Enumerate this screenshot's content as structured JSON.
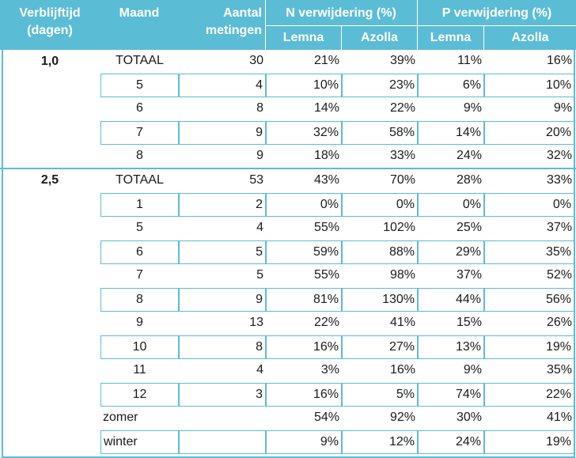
{
  "header": {
    "verblijftijd": [
      "Verblijftijd",
      "(dagen)"
    ],
    "maand": "Maand",
    "aantal": [
      "Aantal",
      "metingen"
    ],
    "n_group": "N verwijdering (%)",
    "p_group": "P verwijdering (%)",
    "sub": [
      "Lemna",
      "Azolla",
      "Lemna",
      "Azolla"
    ]
  },
  "groups": [
    {
      "verblijftijd": "1,0",
      "rows": [
        {
          "maand": "TOTAAL",
          "aantal": "30",
          "n_lemna": "21%",
          "n_azolla": "39%",
          "p_lemna": "11%",
          "p_azolla": "16%"
        },
        {
          "maand": "5",
          "aantal": "4",
          "n_lemna": "10%",
          "n_azolla": "23%",
          "p_lemna": "6%",
          "p_azolla": "10%"
        },
        {
          "maand": "6",
          "aantal": "8",
          "n_lemna": "14%",
          "n_azolla": "22%",
          "p_lemna": "9%",
          "p_azolla": "9%"
        },
        {
          "maand": "7",
          "aantal": "9",
          "n_lemna": "32%",
          "n_azolla": "58%",
          "p_lemna": "14%",
          "p_azolla": "20%"
        },
        {
          "maand": "8",
          "aantal": "9",
          "n_lemna": "18%",
          "n_azolla": "33%",
          "p_lemna": "24%",
          "p_azolla": "32%"
        }
      ]
    },
    {
      "verblijftijd": "2,5",
      "rows": [
        {
          "maand": "TOTAAL",
          "aantal": "53",
          "n_lemna": "43%",
          "n_azolla": "70%",
          "p_lemna": "28%",
          "p_azolla": "33%"
        },
        {
          "maand": "1",
          "aantal": "2",
          "n_lemna": "0%",
          "n_azolla": "0%",
          "p_lemna": "0%",
          "p_azolla": "0%"
        },
        {
          "maand": "5",
          "aantal": "4",
          "n_lemna": "55%",
          "n_azolla": "102%",
          "p_lemna": "25%",
          "p_azolla": "37%"
        },
        {
          "maand": "6",
          "aantal": "5",
          "n_lemna": "59%",
          "n_azolla": "88%",
          "p_lemna": "29%",
          "p_azolla": "35%"
        },
        {
          "maand": "7",
          "aantal": "5",
          "n_lemna": "55%",
          "n_azolla": "98%",
          "p_lemna": "37%",
          "p_azolla": "52%"
        },
        {
          "maand": "8",
          "aantal": "9",
          "n_lemna": "81%",
          "n_azolla": "130%",
          "p_lemna": "44%",
          "p_azolla": "56%"
        },
        {
          "maand": "9",
          "aantal": "13",
          "n_lemna": "22%",
          "n_azolla": "41%",
          "p_lemna": "15%",
          "p_azolla": "26%"
        },
        {
          "maand": "10",
          "aantal": "8",
          "n_lemna": "16%",
          "n_azolla": "27%",
          "p_lemna": "13%",
          "p_azolla": "19%"
        },
        {
          "maand": "11",
          "aantal": "4",
          "n_lemna": "3%",
          "n_azolla": "16%",
          "p_lemna": "9%",
          "p_azolla": "35%"
        },
        {
          "maand": "12",
          "aantal": "3",
          "n_lemna": "16%",
          "n_azolla": "5%",
          "p_lemna": "74%",
          "p_azolla": "22%"
        },
        {
          "maand": "zomer",
          "aantal": "",
          "n_lemna": "54%",
          "n_azolla": "92%",
          "p_lemna": "30%",
          "p_azolla": "41%"
        },
        {
          "maand": "winter",
          "aantal": "",
          "n_lemna": "9%",
          "n_azolla": "12%",
          "p_lemna": "24%",
          "p_azolla": "19%"
        }
      ]
    }
  ],
  "colors": {
    "header_bg": "#5bbcd6",
    "header_text": "#ffffff",
    "grid": "#5bbcd6"
  }
}
